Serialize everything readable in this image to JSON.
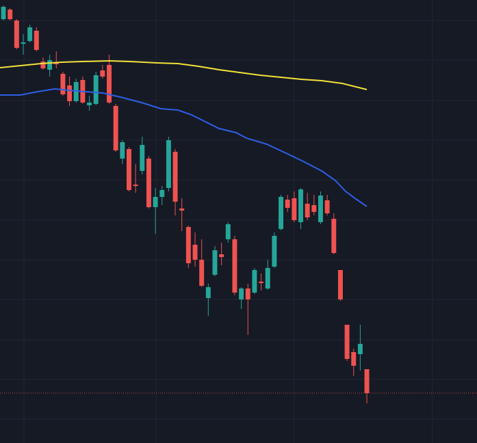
{
  "chart_data": {
    "type": "candlestick",
    "x": [
      0,
      1,
      2,
      3,
      4,
      5,
      6,
      7,
      8,
      9,
      10,
      11,
      12,
      13,
      14,
      15,
      16,
      17,
      18,
      19,
      20,
      21,
      22,
      23,
      24,
      25,
      26,
      27,
      28,
      29,
      30,
      31,
      32,
      33,
      34,
      35,
      36,
      37,
      38,
      39,
      40,
      41,
      42,
      43,
      44,
      45,
      46,
      47,
      48,
      49,
      50,
      51,
      52,
      53,
      54,
      55
    ],
    "open": [
      620,
      634,
      618,
      584,
      588,
      603,
      558,
      546,
      556,
      540,
      523,
      500,
      531,
      494,
      496,
      545,
      553,
      493,
      416,
      430,
      378,
      398,
      416,
      345,
      360,
      373,
      426,
      343,
      316,
      290,
      268,
      212,
      246,
      276,
      298,
      298,
      210,
      226,
      220,
      236,
      226,
      258,
      313,
      356,
      358,
      323,
      350,
      348,
      323,
      355,
      328,
      253,
      173,
      133,
      130,
      108
    ],
    "high": [
      640,
      636,
      620,
      598,
      612,
      608,
      564,
      568,
      573,
      543,
      536,
      533,
      536,
      508,
      543,
      553,
      568,
      496,
      443,
      433,
      408,
      448,
      420,
      373,
      376,
      448,
      430,
      358,
      318,
      308,
      298,
      233,
      288,
      293,
      323,
      303,
      228,
      233,
      256,
      248,
      268,
      308,
      363,
      363,
      368,
      373,
      366,
      363,
      368,
      363,
      336,
      253,
      173,
      138,
      173,
      108
    ],
    "low": [
      618,
      618,
      576,
      568,
      586,
      573,
      546,
      536,
      548,
      508,
      493,
      498,
      496,
      486,
      494,
      533,
      496,
      426,
      408,
      368,
      366,
      393,
      343,
      306,
      348,
      368,
      333,
      310,
      256,
      258,
      228,
      186,
      244,
      260,
      293,
      216,
      196,
      158,
      218,
      223,
      224,
      256,
      311,
      338,
      323,
      313,
      326,
      333,
      320,
      333,
      276,
      208,
      120,
      98,
      106,
      58
    ],
    "close": [
      638,
      620,
      578,
      586,
      608,
      575,
      548,
      560,
      554,
      510,
      500,
      528,
      498,
      498,
      538,
      536,
      498,
      428,
      440,
      370,
      376,
      436,
      345,
      360,
      370,
      443,
      353,
      340,
      263,
      268,
      230,
      228,
      282,
      272,
      320,
      220,
      226,
      210,
      253,
      234,
      256,
      303,
      360,
      344,
      326,
      371,
      330,
      338,
      362,
      336,
      278,
      210,
      123,
      113,
      145,
      73
    ],
    "up_color": "#26a69a",
    "down_color": "#ef5350",
    "lines": [
      {
        "color": "#f5e23a",
        "x": [
          -0.52,
          2.59,
          5.7,
          8.8,
          11.91,
          16.05,
          19.16,
          23.3,
          26.41,
          29.52,
          32.63,
          35.73,
          38.84,
          41.95,
          45.05,
          48.16,
          51.27,
          53.34,
          55.0
        ],
        "values": [
          549,
          552,
          555,
          557,
          558,
          559,
          558,
          556,
          555,
          551,
          546,
          542,
          538,
          535,
          532,
          530,
          526,
          521,
          517
        ]
      },
      {
        "color": "#2f5fe8",
        "x": [
          -0.52,
          2.59,
          4.66,
          7.77,
          10.87,
          15.02,
          18.13,
          21.23,
          23.82,
          26.41,
          28.48,
          30.55,
          32.63,
          35.21,
          36.77,
          39.87,
          42.98,
          45.57,
          48.16,
          50.23,
          51.79,
          53.34,
          55.0
        ],
        "values": [
          509,
          509,
          513,
          518,
          515,
          512,
          505,
          497,
          489,
          487,
          480,
          470,
          460,
          454,
          446,
          437,
          423,
          411,
          398,
          384,
          368,
          357,
          346
        ]
      }
    ],
    "xlim": [
      -0.52,
      71.67
    ],
    "ylim": [
      0,
      648
    ],
    "xticks": [
      3.1,
      23.1,
      44.0,
      64.9
    ],
    "yticks": [
      618,
      560,
      501,
      443,
      385,
      326,
      268,
      210,
      151,
      93,
      35
    ],
    "grid": true
  }
}
